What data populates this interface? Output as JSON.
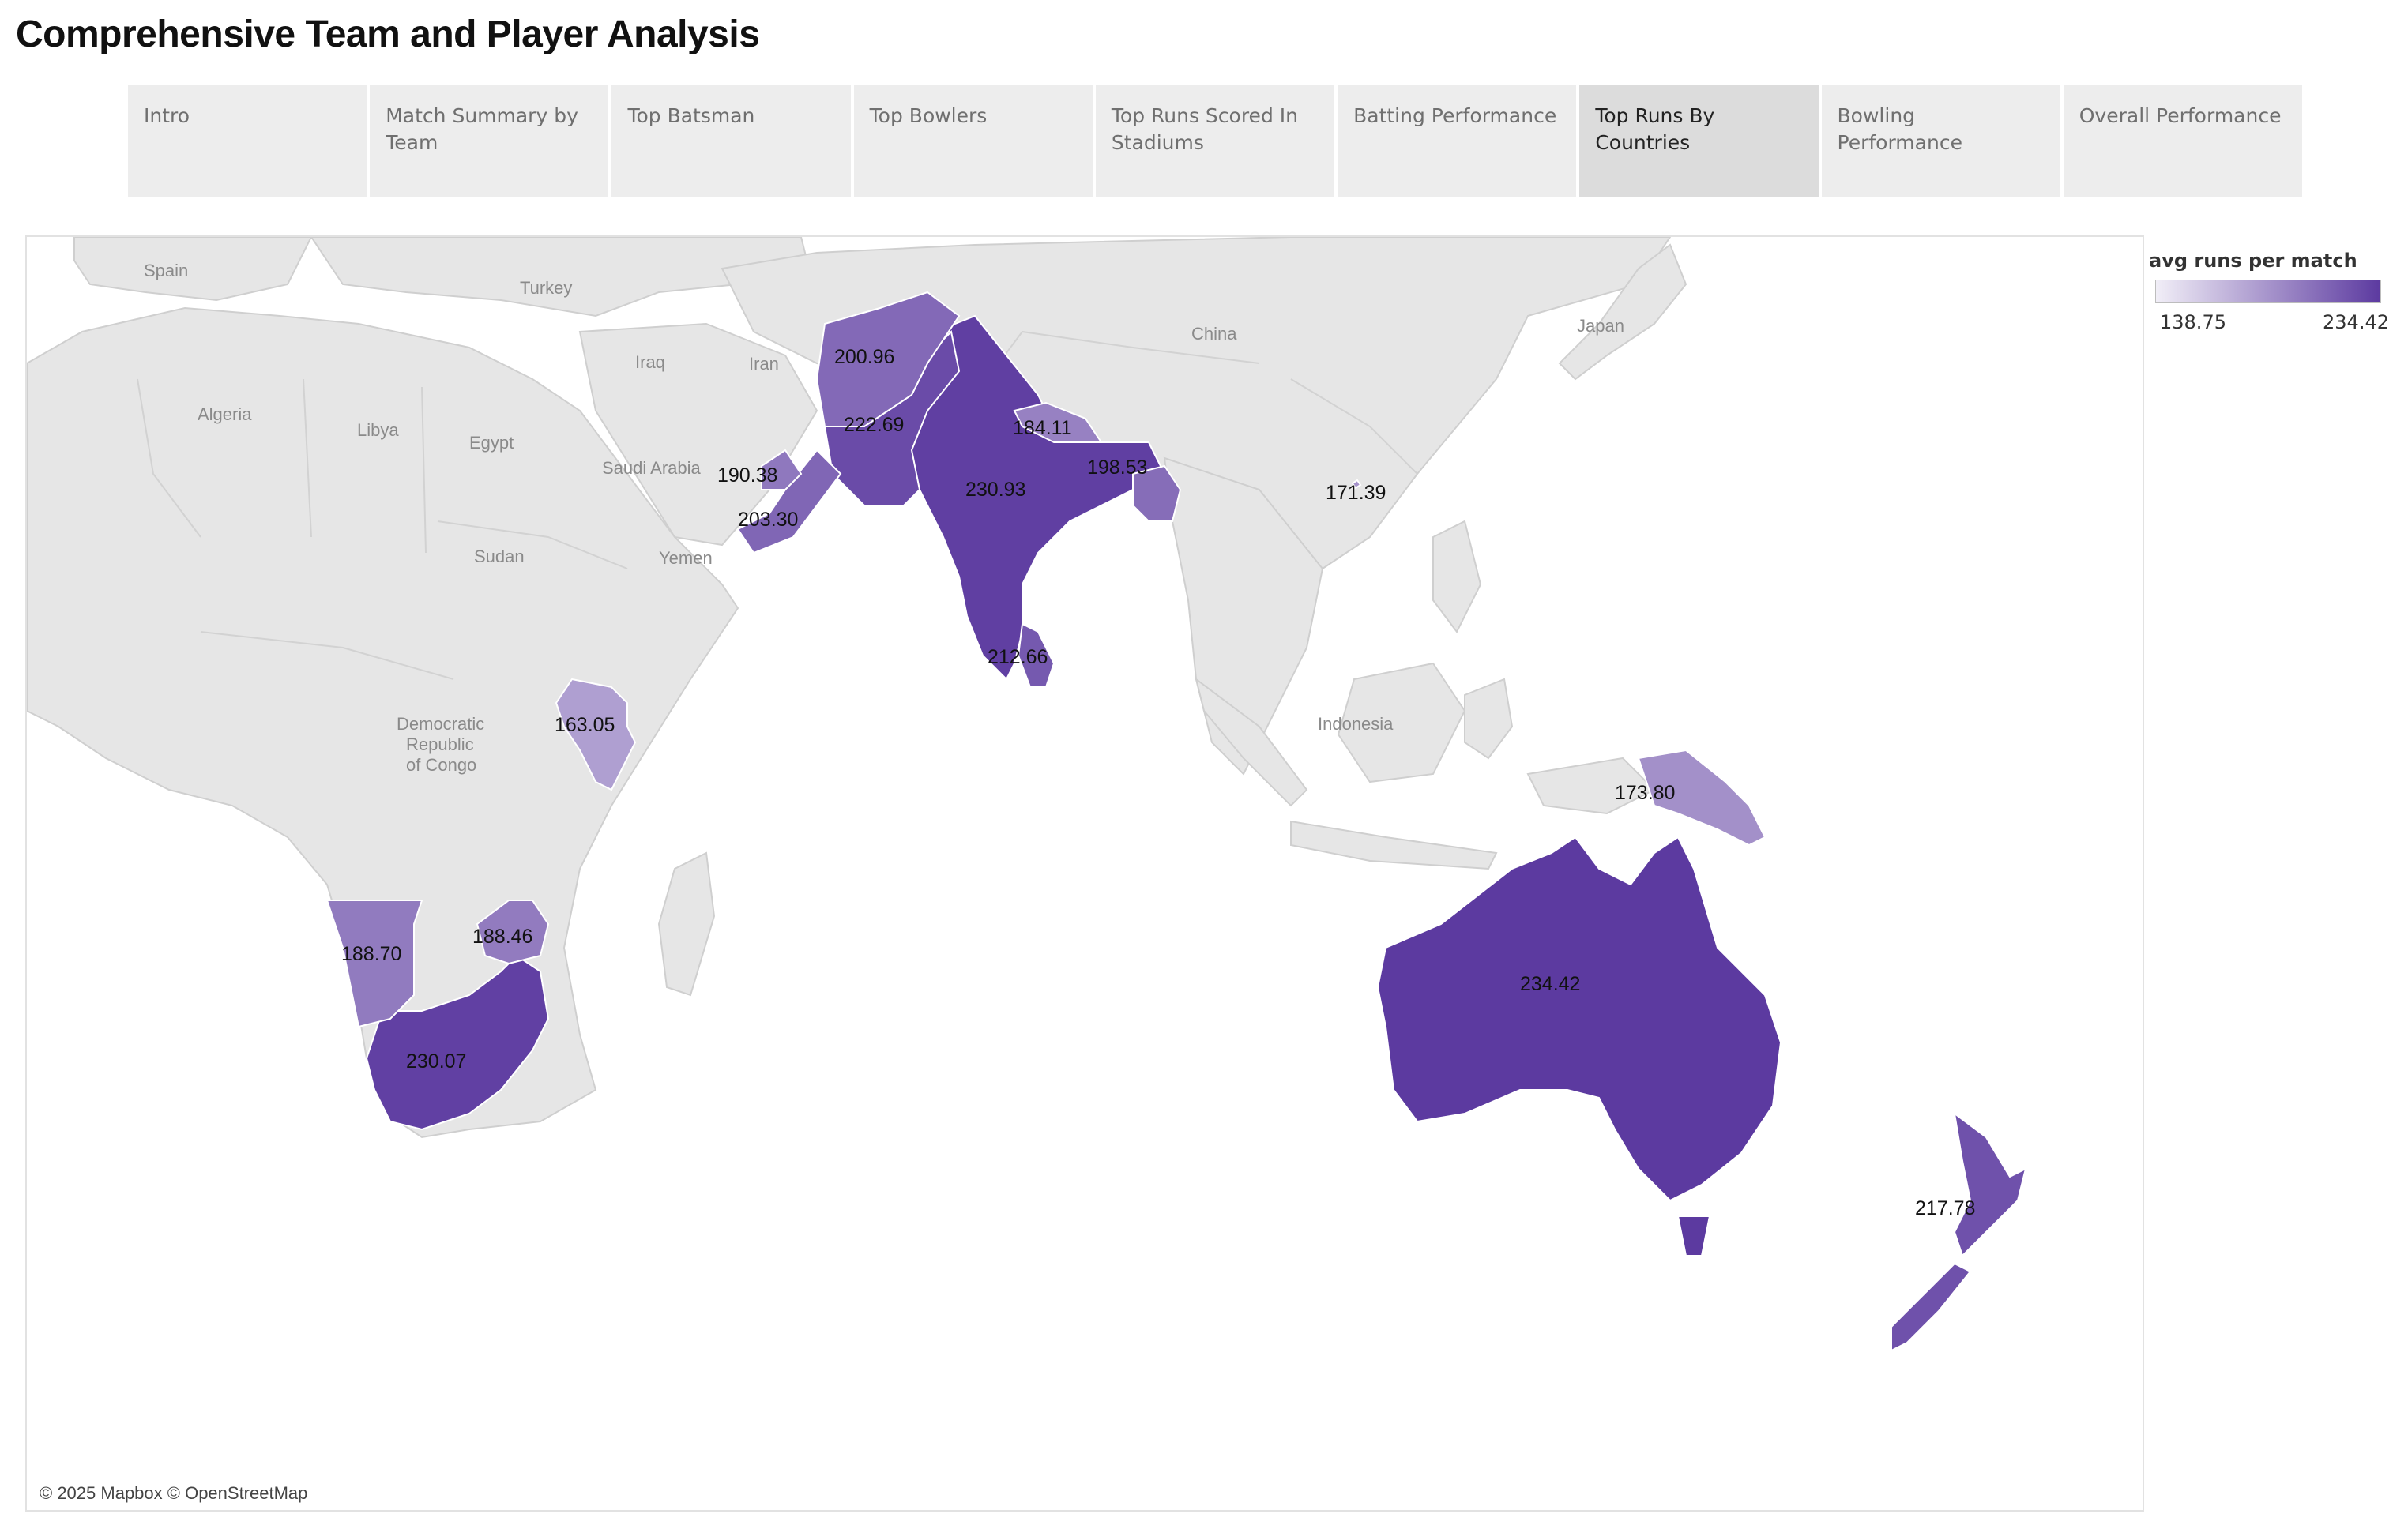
{
  "page_title": "Comprehensive Team and Player Analysis",
  "tabs": [
    {
      "label": "Intro",
      "active": false
    },
    {
      "label": "Match Summary by Team",
      "active": false
    },
    {
      "label": "Top Batsman",
      "active": false
    },
    {
      "label": "Top Bowlers",
      "active": false
    },
    {
      "label": "Top Runs Scored In Stadiums",
      "active": false
    },
    {
      "label": "Batting Performance",
      "active": false
    },
    {
      "label": "Top Runs By Countries",
      "active": true
    },
    {
      "label": "Bowling Performance",
      "active": false
    },
    {
      "label": "Overall Performance",
      "active": false
    }
  ],
  "legend": {
    "title": "avg runs per match",
    "min_label": "138.75",
    "max_label": "234.42",
    "min_value": 138.75,
    "max_value": 234.42,
    "color_low": "#f1eef7",
    "color_high": "#5c3aa0"
  },
  "map": {
    "attribution": "© 2025 Mapbox © OpenStreetMap",
    "land_color": "#e6e6e6",
    "ocean_color": "#ffffff",
    "country_names": [
      "Spain",
      "Turkey",
      "Iraq",
      "Iran",
      "China",
      "Japan",
      "Algeria",
      "Libya",
      "Egypt",
      "Saudi Arabia",
      "Yemen",
      "Sudan",
      "Democratic",
      "Republic",
      "of Congo",
      "Indonesia"
    ],
    "values": [
      {
        "country": "Australia",
        "label": "234.42",
        "value": 234.42
      },
      {
        "country": "India",
        "label": "230.93",
        "value": 230.93
      },
      {
        "country": "South Africa",
        "label": "230.07",
        "value": 230.07
      },
      {
        "country": "Pakistan",
        "label": "222.69",
        "value": 222.69
      },
      {
        "country": "New Zealand",
        "label": "217.78",
        "value": 217.78
      },
      {
        "country": "Sri Lanka",
        "label": "212.66",
        "value": 212.66
      },
      {
        "country": "Oman",
        "label": "203.30",
        "value": 203.3
      },
      {
        "country": "Afghanistan",
        "label": "200.96",
        "value": 200.96
      },
      {
        "country": "Bangladesh",
        "label": "198.53",
        "value": 198.53
      },
      {
        "country": "United Arab Emirates",
        "label": "190.38",
        "value": 190.38
      },
      {
        "country": "Namibia",
        "label": "188.70",
        "value": 188.7
      },
      {
        "country": "Zimbabwe",
        "label": "188.46",
        "value": 188.46
      },
      {
        "country": "Nepal",
        "label": "184.11",
        "value": 184.11
      },
      {
        "country": "Papua New Guinea",
        "label": "173.80",
        "value": 173.8
      },
      {
        "country": "Hong Kong",
        "label": "171.39",
        "value": 171.39
      },
      {
        "country": "Kenya",
        "label": "163.05",
        "value": 163.05
      }
    ]
  }
}
